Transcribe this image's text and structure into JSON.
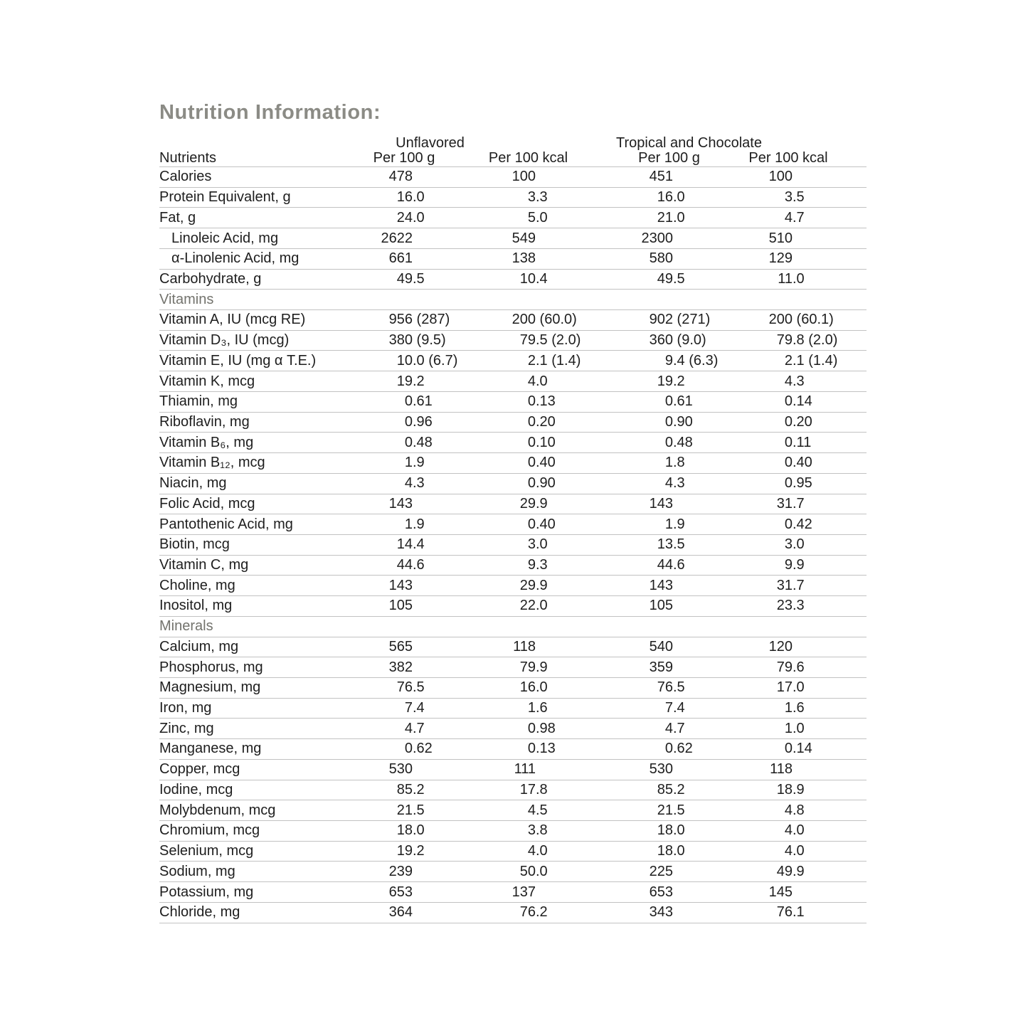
{
  "title": "Nutrition Information:",
  "colors": {
    "title": "#8b8b85",
    "section": "#73736d",
    "body_text": "#1e1e1e",
    "rule": "#c2c2c2"
  },
  "table": {
    "groups": [
      "Unflavored",
      "Tropical and Chocolate"
    ],
    "columns": [
      "Nutrients",
      "Per 100 g",
      "Per 100 kcal",
      "Per 100 g",
      "Per 100 kcal"
    ],
    "rows": [
      {
        "label": "Calories",
        "values": [
          "478",
          "100",
          "451",
          "100"
        ]
      },
      {
        "label": "Protein Equivalent, g",
        "values": [
          "16.0",
          "3.3",
          "16.0",
          "3.5"
        ]
      },
      {
        "label": "Fat, g",
        "values": [
          "24.0",
          "5.0",
          "21.0",
          "4.7"
        ]
      },
      {
        "label": "Linoleic Acid, mg",
        "indent": true,
        "values": [
          "2622",
          "549",
          "2300",
          "510"
        ]
      },
      {
        "label": "α-Linolenic Acid, mg",
        "indent": true,
        "values": [
          "661",
          "138",
          "580",
          "129"
        ]
      },
      {
        "label": "Carbohydrate, g",
        "values": [
          "49.5",
          "10.4",
          "49.5",
          "11.0"
        ]
      },
      {
        "section": "Vitamins"
      },
      {
        "label": "Vitamin A, IU (mcg RE)",
        "values": [
          "956 (287)",
          "200 (60.0)",
          "902 (271)",
          "200 (60.1)"
        ]
      },
      {
        "label": "Vitamin D₃, IU (mcg)",
        "values": [
          "380 (9.5)",
          "79.5 (2.0)",
          "360 (9.0)",
          "79.8 (2.0)"
        ]
      },
      {
        "label": "Vitamin E, IU (mg α T.E.)",
        "values": [
          "10.0 (6.7)",
          "2.1 (1.4)",
          "9.4 (6.3)",
          "2.1 (1.4)"
        ]
      },
      {
        "label": "Vitamin K, mcg",
        "values": [
          "19.2",
          "4.0",
          "19.2",
          "4.3"
        ]
      },
      {
        "label": "Thiamin, mg",
        "values": [
          "0.61",
          "0.13",
          "0.61",
          "0.14"
        ]
      },
      {
        "label": "Riboflavin, mg",
        "values": [
          "0.96",
          "0.20",
          "0.90",
          "0.20"
        ]
      },
      {
        "label": "Vitamin B₆, mg",
        "values": [
          "0.48",
          "0.10",
          "0.48",
          "0.11"
        ]
      },
      {
        "label": "Vitamin B₁₂, mcg",
        "values": [
          "1.9",
          "0.40",
          "1.8",
          "0.40"
        ]
      },
      {
        "label": "Niacin, mg",
        "values": [
          "4.3",
          "0.90",
          "4.3",
          "0.95"
        ]
      },
      {
        "label": "Folic Acid, mcg",
        "values": [
          "143",
          "29.9",
          "143",
          "31.7"
        ]
      },
      {
        "label": "Pantothenic Acid, mg",
        "values": [
          "1.9",
          "0.40",
          "1.9",
          "0.42"
        ]
      },
      {
        "label": "Biotin, mcg",
        "values": [
          "14.4",
          "3.0",
          "13.5",
          "3.0"
        ]
      },
      {
        "label": "Vitamin C, mg",
        "values": [
          "44.6",
          "9.3",
          "44.6",
          "9.9"
        ]
      },
      {
        "label": "Choline, mg",
        "values": [
          "143",
          "29.9",
          "143",
          "31.7"
        ]
      },
      {
        "label": "Inositol, mg",
        "values": [
          "105",
          "22.0",
          "105",
          "23.3"
        ]
      },
      {
        "section": "Minerals"
      },
      {
        "label": "Calcium, mg",
        "values": [
          "565",
          "118",
          "540",
          "120"
        ]
      },
      {
        "label": "Phosphorus, mg",
        "values": [
          "382",
          "79.9",
          "359",
          "79.6"
        ]
      },
      {
        "label": "Magnesium, mg",
        "values": [
          "76.5",
          "16.0",
          "76.5",
          "17.0"
        ]
      },
      {
        "label": "Iron, mg",
        "values": [
          "7.4",
          "1.6",
          "7.4",
          "1.6"
        ]
      },
      {
        "label": "Zinc, mg",
        "values": [
          "4.7",
          "0.98",
          "4.7",
          "1.0"
        ]
      },
      {
        "label": "Manganese, mg",
        "values": [
          "0.62",
          "0.13",
          "0.62",
          "0.14"
        ]
      },
      {
        "label": "Copper, mcg",
        "values": [
          "530",
          "111",
          "530",
          "118"
        ]
      },
      {
        "label": "Iodine, mcg",
        "values": [
          "85.2",
          "17.8",
          "85.2",
          "18.9"
        ]
      },
      {
        "label": "Molybdenum, mcg",
        "values": [
          "21.5",
          "4.5",
          "21.5",
          "4.8"
        ]
      },
      {
        "label": "Chromium, mcg",
        "values": [
          "18.0",
          "3.8",
          "18.0",
          "4.0"
        ]
      },
      {
        "label": "Selenium, mcg",
        "values": [
          "19.2",
          "4.0",
          "18.0",
          "4.0"
        ]
      },
      {
        "label": "Sodium, mg",
        "values": [
          "239",
          "50.0",
          "225",
          "49.9"
        ]
      },
      {
        "label": "Potassium, mg",
        "values": [
          "653",
          "137",
          "653",
          "145"
        ]
      },
      {
        "label": "Chloride, mg",
        "values": [
          "364",
          "76.2",
          "343",
          "76.1"
        ]
      }
    ]
  }
}
